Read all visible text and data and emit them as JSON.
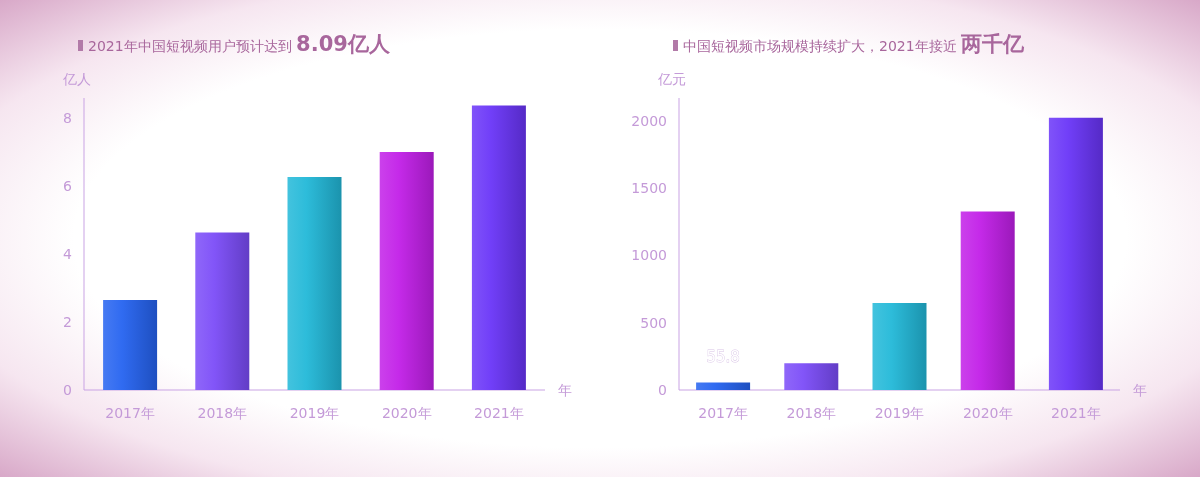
{
  "chart_data": [
    {
      "type": "bar",
      "title": "2021年中国短视频用户预计达到 **8.09亿人**",
      "ylabel": "亿人",
      "xlabel": "年",
      "categories": [
        "2017年",
        "2018年",
        "2019年",
        "2020年",
        "2021年"
      ],
      "values": [
        2.65,
        4.64,
        6.27,
        7.01,
        8.38
      ],
      "colors": [
        "#2563f0",
        "#7b4cf8",
        "#22b8d8",
        "#c21fe8",
        "#6a35f8"
      ],
      "ylim": [
        0,
        8.6
      ],
      "yticks": [
        0,
        2,
        4,
        6,
        8
      ],
      "grid": false,
      "legend": false
    },
    {
      "type": "bar",
      "title": "中国短视频市场规模持续扩大，2021年接近 **两千亿**",
      "ylabel": "亿元",
      "xlabel": "年",
      "categories": [
        "2017年",
        "2018年",
        "2019年",
        "2020年",
        "2021年"
      ],
      "values": [
        55.8,
        199,
        647,
        1326,
        2024
      ],
      "value_labels": [
        "55.8",
        null,
        null,
        null,
        null
      ],
      "colors": [
        "#2563f0",
        "#7b4cf8",
        "#22b8d8",
        "#c21fe8",
        "#6a35f8"
      ],
      "ylim": [
        0,
        2170
      ],
      "yticks": [
        0,
        500,
        1000,
        1500,
        2000
      ],
      "grid": false,
      "legend": false
    }
  ]
}
